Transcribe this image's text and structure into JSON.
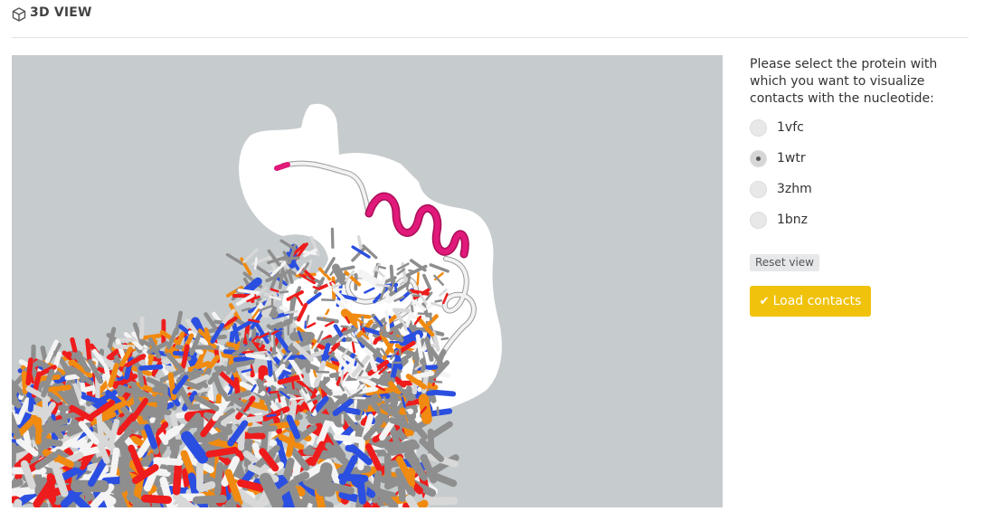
{
  "header": {
    "title": "3D VIEW",
    "icon": "cube-icon"
  },
  "panel": {
    "prompt": "Please select the protein with which you want to visualize contacts with the nucleotide:",
    "options": [
      {
        "label": "1vfc",
        "checked": false
      },
      {
        "label": "1wtr",
        "checked": true
      },
      {
        "label": "3zhm",
        "checked": false
      },
      {
        "label": "1bnz",
        "checked": false
      }
    ],
    "reset_label": "Reset view",
    "load_label": "Load contacts"
  },
  "colors": {
    "viewer_bg": "#c6cbcd",
    "helix": "#e0197a",
    "accent_button": "#f0c20c",
    "carbon": "#8e8e8e",
    "oxygen": "#ee1c1c",
    "nitrogen": "#2b4fe0",
    "phosphorus": "#f08a10"
  }
}
